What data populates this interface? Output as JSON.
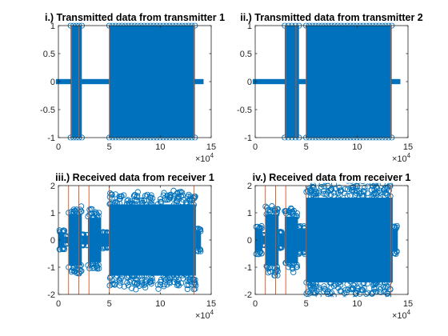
{
  "colors": {
    "data": "#0072BD",
    "marker_line": "#D95319",
    "axes": "#262626"
  },
  "chart_data": [
    {
      "type": "scatter",
      "title": "i.) Transmitted data from transmitter 1",
      "xlim": [
        0,
        15
      ],
      "x_exponent": "4",
      "ylim": [
        -1,
        1
      ],
      "xticks": [
        "0",
        "5",
        "10",
        "15"
      ],
      "yticks": [
        "-1",
        "-0.5",
        "0",
        "0.5",
        "1"
      ],
      "blocks": [
        {
          "x0": 1.2,
          "x1": 2.3,
          "kind": "binary"
        },
        {
          "x0": 5.0,
          "x1": 13.4,
          "kind": "binary"
        }
      ],
      "baseline": {
        "x0": 0,
        "x1": 14.0,
        "y": 0
      },
      "vlines": [
        1.3,
        2.0,
        5.0,
        13.3
      ],
      "vline_range": [
        -1,
        1
      ]
    },
    {
      "type": "scatter",
      "title": "ii.) Transmitted data from transmitter 2",
      "xlim": [
        0,
        15
      ],
      "x_exponent": "4",
      "ylim": [
        -1,
        1
      ],
      "xticks": [
        "0",
        "5",
        "10",
        "15"
      ],
      "yticks": [
        "-1",
        "-0.5",
        "0",
        "0.5",
        "1"
      ],
      "blocks": [
        {
          "x0": 2.9,
          "x1": 4.3,
          "kind": "binary"
        },
        {
          "x0": 5.0,
          "x1": 13.4,
          "kind": "binary"
        }
      ],
      "baseline": {
        "x0": 0,
        "x1": 14.0,
        "y": 0
      },
      "vlines": [
        3.0,
        4.0,
        5.0,
        13.3
      ],
      "vline_range": [
        -1,
        1
      ]
    },
    {
      "type": "scatter",
      "title": "iii.) Received data from receiver 1",
      "xlim": [
        0,
        15
      ],
      "x_exponent": "4",
      "ylim": [
        -2,
        2
      ],
      "xticks": [
        "0",
        "5",
        "10",
        "15"
      ],
      "yticks": [
        "-2",
        "-1",
        "0",
        "1",
        "2"
      ],
      "blocks": [
        {
          "x0": 0,
          "x1": 0.6,
          "kind": "noise",
          "amp": 0.35
        },
        {
          "x0": 0.6,
          "x1": 1.0,
          "kind": "noise",
          "amp": 0.15
        },
        {
          "x0": 1.0,
          "x1": 2.3,
          "kind": "signal",
          "amp": 1.15
        },
        {
          "x0": 2.3,
          "x1": 2.9,
          "kind": "noise",
          "amp": 0.2
        },
        {
          "x0": 2.9,
          "x1": 4.2,
          "kind": "signal",
          "amp": 1.0
        },
        {
          "x0": 4.2,
          "x1": 5.0,
          "kind": "noise",
          "amp": 0.3
        },
        {
          "x0": 5.0,
          "x1": 13.5,
          "kind": "signal",
          "amp": 1.6
        },
        {
          "x0": 13.5,
          "x1": 14.0,
          "kind": "noise",
          "amp": 0.4
        }
      ],
      "vlines": [
        1.0,
        2.0,
        3.0,
        5.0,
        13.3
      ],
      "vline_range": [
        -2,
        2
      ]
    },
    {
      "type": "scatter",
      "title": "iv.) Received data from receiver 1",
      "xlim": [
        0,
        15
      ],
      "x_exponent": "4",
      "ylim": [
        -2,
        2
      ],
      "xticks": [
        "0",
        "5",
        "10",
        "15"
      ],
      "yticks": [
        "-2",
        "-1",
        "0",
        "1",
        "2"
      ],
      "blocks": [
        {
          "x0": 0,
          "x1": 0.7,
          "kind": "noise",
          "amp": 0.5
        },
        {
          "x0": 0.7,
          "x1": 1.0,
          "kind": "noise",
          "amp": 0.2
        },
        {
          "x0": 1.0,
          "x1": 2.3,
          "kind": "signal",
          "amp": 1.15
        },
        {
          "x0": 2.3,
          "x1": 2.9,
          "kind": "noise",
          "amp": 0.3
        },
        {
          "x0": 2.9,
          "x1": 4.2,
          "kind": "signal",
          "amp": 1.05
        },
        {
          "x0": 4.2,
          "x1": 5.0,
          "kind": "noise",
          "amp": 0.5
        },
        {
          "x0": 5.0,
          "x1": 13.5,
          "kind": "signal",
          "amp": 1.9
        },
        {
          "x0": 13.5,
          "x1": 14.0,
          "kind": "noise",
          "amp": 0.5
        }
      ],
      "vlines": [
        1.0,
        2.0,
        3.0,
        5.0,
        13.3
      ],
      "vline_range": [
        -2,
        2
      ]
    }
  ]
}
